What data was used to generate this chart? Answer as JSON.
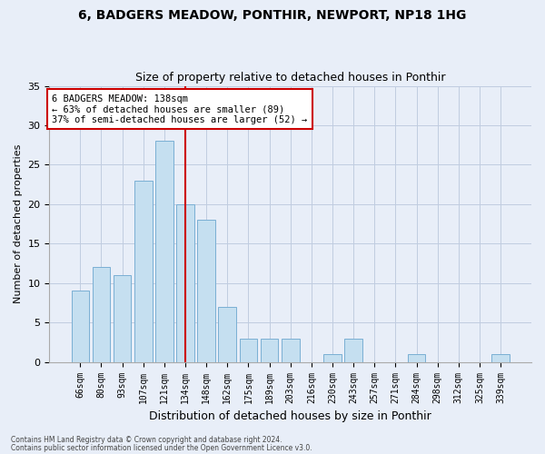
{
  "title_line1": "6, BADGERS MEADOW, PONTHIR, NEWPORT, NP18 1HG",
  "title_line2": "Size of property relative to detached houses in Ponthir",
  "xlabel": "Distribution of detached houses by size in Ponthir",
  "ylabel": "Number of detached properties",
  "categories": [
    "66sqm",
    "80sqm",
    "93sqm",
    "107sqm",
    "121sqm",
    "134sqm",
    "148sqm",
    "162sqm",
    "175sqm",
    "189sqm",
    "203sqm",
    "216sqm",
    "230sqm",
    "243sqm",
    "257sqm",
    "271sqm",
    "284sqm",
    "298sqm",
    "312sqm",
    "325sqm",
    "339sqm"
  ],
  "values": [
    9,
    12,
    11,
    23,
    28,
    20,
    18,
    7,
    3,
    3,
    3,
    0,
    1,
    3,
    0,
    0,
    1,
    0,
    0,
    0,
    1
  ],
  "bar_color": "#c5dff0",
  "bar_edge_color": "#7aafd4",
  "vline_index": 5,
  "vline_color": "#cc0000",
  "annotation_text": "6 BADGERS MEADOW: 138sqm\n← 63% of detached houses are smaller (89)\n37% of semi-detached houses are larger (52) →",
  "annotation_box_facecolor": "white",
  "annotation_box_edgecolor": "#cc0000",
  "ylim": [
    0,
    35
  ],
  "yticks": [
    0,
    5,
    10,
    15,
    20,
    25,
    30,
    35
  ],
  "footer_line1": "Contains HM Land Registry data © Crown copyright and database right 2024.",
  "footer_line2": "Contains public sector information licensed under the Open Government Licence v3.0.",
  "background_color": "#e8eef8",
  "grid_color": "#c0cce0",
  "title1_fontsize": 10,
  "title2_fontsize": 9,
  "ylabel_fontsize": 8,
  "xlabel_fontsize": 9,
  "tick_fontsize": 7,
  "annot_fontsize": 7.5,
  "footer_fontsize": 5.5
}
